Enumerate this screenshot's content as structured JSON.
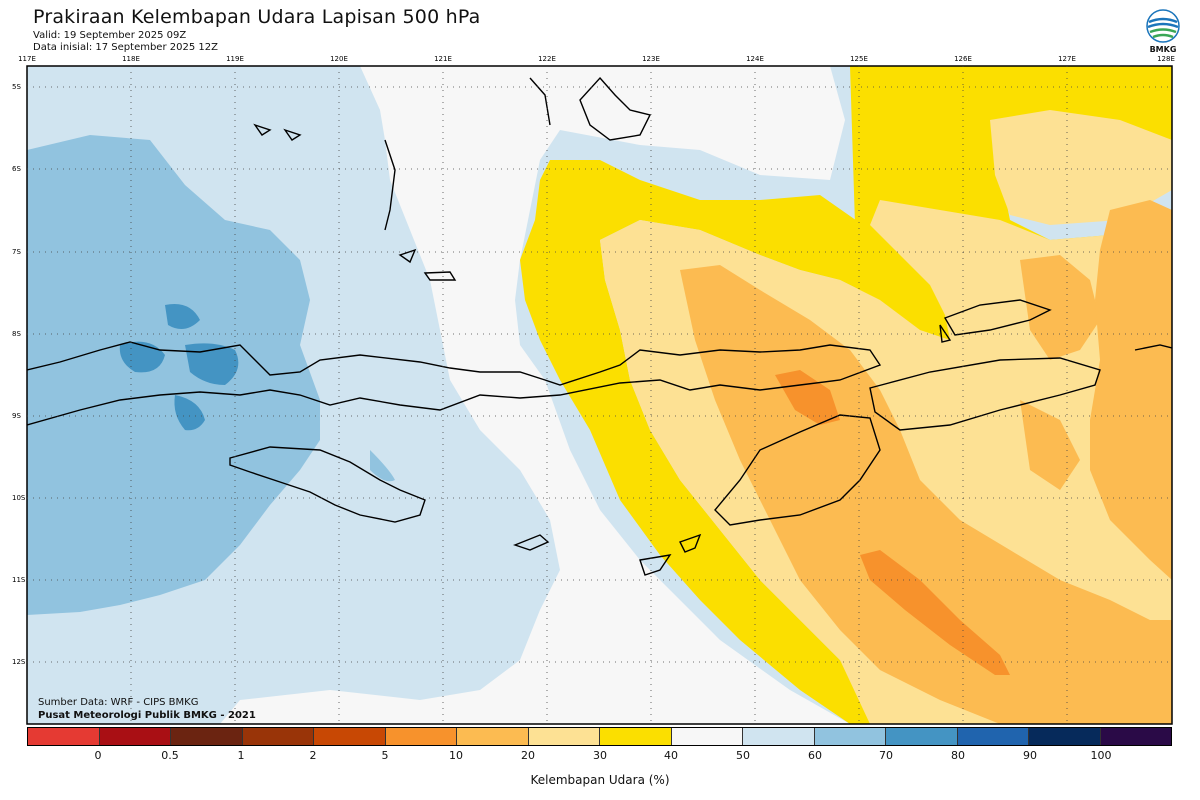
{
  "header": {
    "title": "Prakiraan Kelembapan Udara Lapisan 500 hPa",
    "valid": "Valid: 19 September 2025 09Z",
    "init": "Data inisial: 17 September 2025 12Z"
  },
  "logo": {
    "text": "BMKG",
    "icon": "bmkg-logo-icon"
  },
  "map": {
    "lon_labels": [
      "117E",
      "118E",
      "119E",
      "120E",
      "121E",
      "122E",
      "123E",
      "124E",
      "125E",
      "126E",
      "127E",
      "128E"
    ],
    "lat_labels": [
      "5S",
      "6S",
      "7S",
      "8S",
      "9S",
      "10S",
      "11S",
      "12S"
    ],
    "lon_range": [
      117,
      128
    ],
    "lat_range": [
      4.8,
      12.9
    ],
    "grid": "dotted"
  },
  "footer": {
    "source": "Sumber Data: WRF - CIPS BMKG",
    "credit": "Pusat Meteorologi Publik BMKG - 2021"
  },
  "colorbar": {
    "label": "Kelembapan Udara (%)",
    "ticks": [
      "0",
      "0.5",
      "1",
      "2",
      "5",
      "10",
      "20",
      "30",
      "40",
      "50",
      "60",
      "70",
      "80",
      "90",
      "100"
    ],
    "colors": [
      "#e53a33",
      "#a90f14",
      "#6b2411",
      "#993408",
      "#c84804",
      "#f7922c",
      "#fcbb51",
      "#fde194",
      "#fbdf00",
      "#f7f7f7",
      "#d0e4f0",
      "#91c3df",
      "#4494c3",
      "#2064ae",
      "#062a5b",
      "#2a0a47"
    ]
  }
}
